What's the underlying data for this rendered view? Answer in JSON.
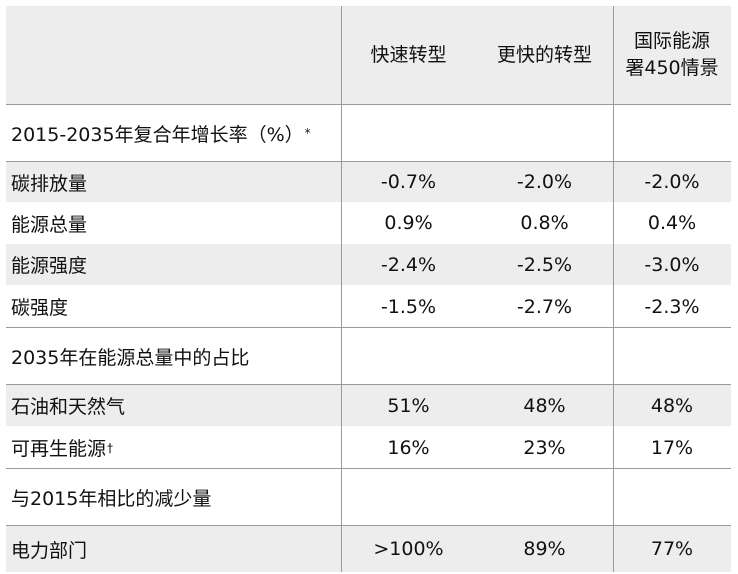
{
  "columns": [
    "快速转型",
    "更快的转型",
    "国际能源署450情景"
  ],
  "column_lines": [
    [
      "快速转型"
    ],
    [
      "更快的转型"
    ],
    [
      "国际能源",
      "署450情景"
    ]
  ],
  "section1": {
    "title": "2015-2035年复合年增长率（%）",
    "title_mark": "*",
    "rows": [
      {
        "label": "碳排放量",
        "values": [
          "-0.7%",
          "-2.0%",
          "-2.0%"
        ]
      },
      {
        "label": "能源总量",
        "values": [
          "0.9%",
          "0.8%",
          "0.4%"
        ]
      },
      {
        "label": "能源强度",
        "values": [
          "-2.4%",
          "-2.5%",
          "-3.0%"
        ]
      },
      {
        "label": "碳强度",
        "values": [
          "-1.5%",
          "-2.7%",
          "-2.3%"
        ]
      }
    ]
  },
  "section2": {
    "title": "2035年在能源总量中的占比",
    "rows": [
      {
        "label": "石油和天然气",
        "values": [
          "51%",
          "48%",
          "48%"
        ]
      },
      {
        "label": "可再生能源",
        "mark": "†",
        "values": [
          "16%",
          "23%",
          "17%"
        ]
      }
    ]
  },
  "section3": {
    "title": "与2015年相比的减少量",
    "rows": [
      {
        "label": "电力部门",
        "values": [
          ">100%",
          "89%",
          "77%"
        ]
      }
    ]
  }
}
